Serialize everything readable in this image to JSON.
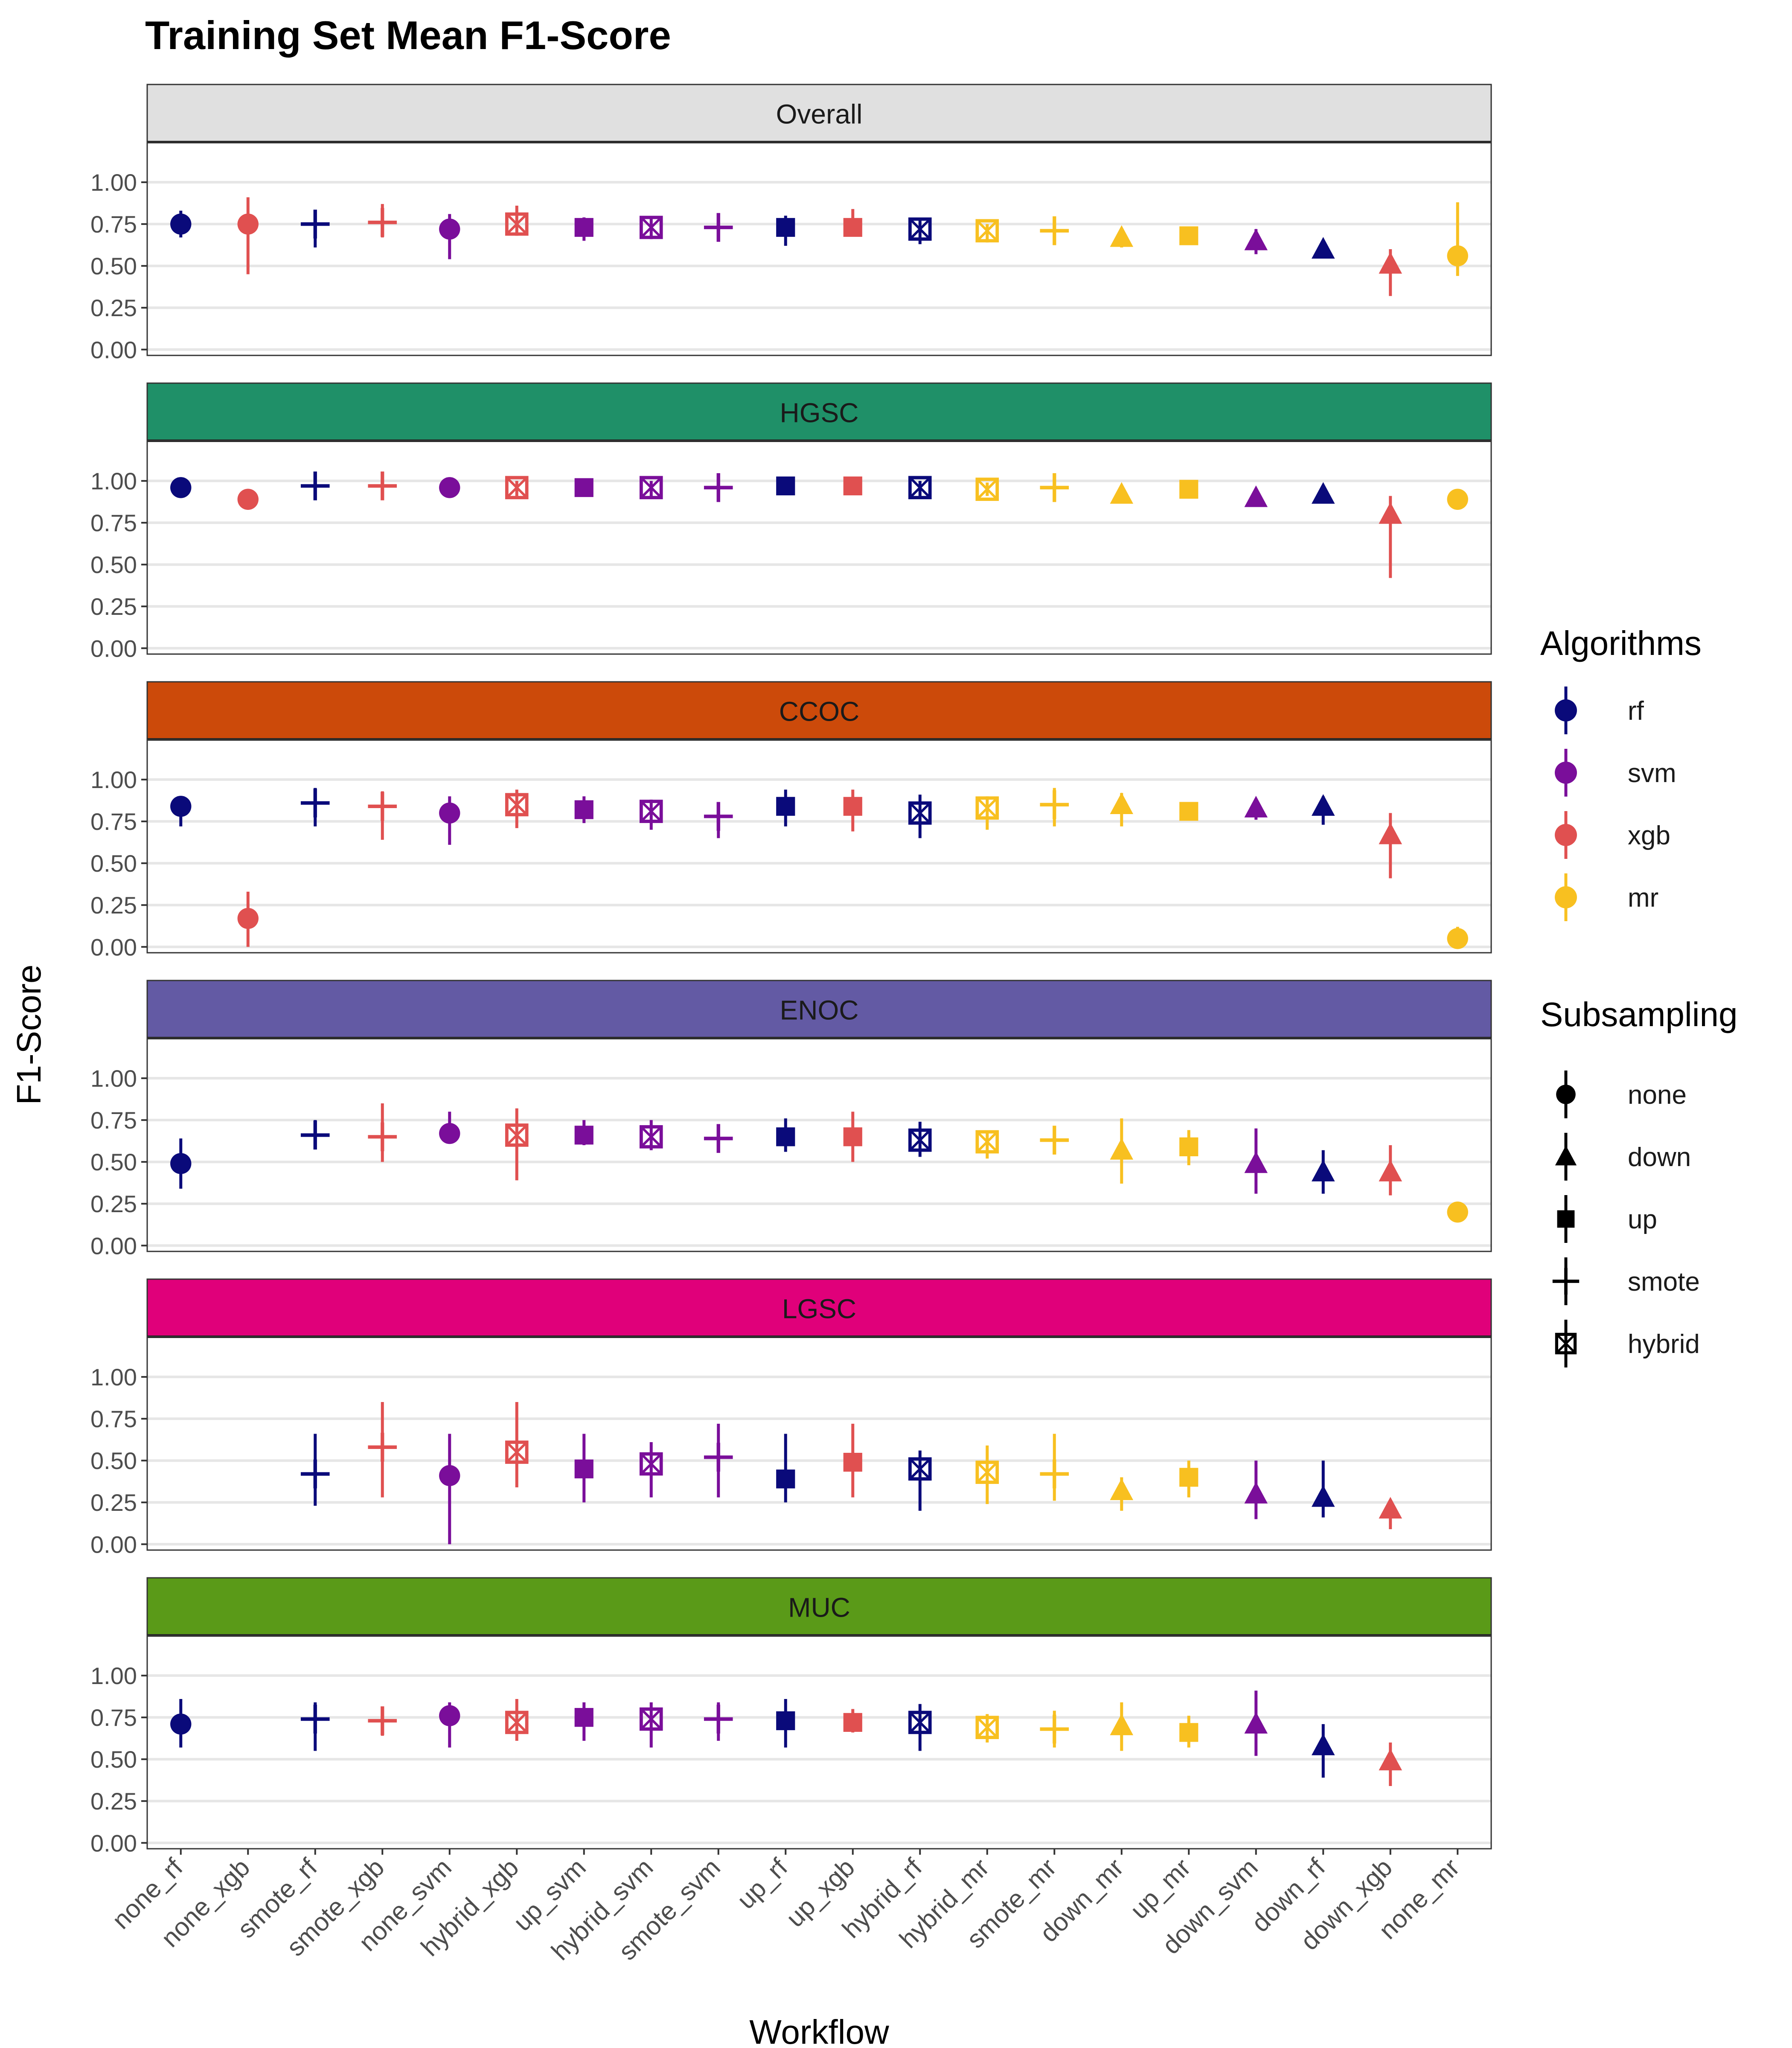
{
  "chart_data": {
    "type": "scatter",
    "title": "Training Set Mean F1-Score",
    "xlabel": "Workflow",
    "ylabel": "F1-Score",
    "ylim": [
      0,
      1
    ],
    "yticks": [
      "0.00",
      "0.25",
      "0.50",
      "0.75",
      "1.00"
    ],
    "grid": "horizontal",
    "legend_position": "right",
    "categories": [
      "none_rf",
      "none_xgb",
      "smote_rf",
      "smote_xgb",
      "none_svm",
      "hybrid_xgb",
      "up_svm",
      "hybrid_svm",
      "smote_svm",
      "up_rf",
      "up_xgb",
      "hybrid_rf",
      "hybrid_mr",
      "smote_mr",
      "down_mr",
      "up_mr",
      "down_svm",
      "down_rf",
      "down_xgb",
      "none_mr"
    ],
    "algorithms": {
      "title": "Algorithms",
      "items": [
        {
          "name": "rf",
          "color": "#0a0a7a"
        },
        {
          "name": "svm",
          "color": "#7a0e9a"
        },
        {
          "name": "xgb",
          "color": "#e05050"
        },
        {
          "name": "mr",
          "color": "#f8c020"
        }
      ]
    },
    "subsampling": {
      "title": "Subsampling",
      "items": [
        "none",
        "down",
        "up",
        "smote",
        "hybrid"
      ]
    },
    "panels": [
      {
        "name": "Overall",
        "strip_color": "#e0e0e0",
        "mean": [
          0.75,
          0.75,
          0.75,
          0.76,
          0.72,
          0.75,
          0.73,
          0.73,
          0.73,
          0.73,
          0.73,
          0.72,
          0.71,
          0.71,
          0.67,
          0.68,
          0.65,
          0.6,
          0.51,
          0.56
        ],
        "low": [
          0.67,
          0.45,
          0.61,
          0.67,
          0.54,
          0.68,
          0.65,
          0.66,
          0.65,
          0.62,
          0.68,
          0.63,
          0.64,
          0.63,
          0.61,
          0.65,
          0.57,
          0.57,
          0.32,
          0.44
        ],
        "high": [
          0.83,
          0.91,
          0.82,
          0.87,
          0.81,
          0.86,
          0.79,
          0.79,
          0.8,
          0.8,
          0.84,
          0.78,
          0.75,
          0.78,
          0.71,
          0.72,
          0.72,
          0.64,
          0.6,
          0.88
        ]
      },
      {
        "name": "HGSC",
        "strip_color": "#1f9068",
        "mean": [
          0.96,
          0.89,
          0.97,
          0.97,
          0.96,
          0.96,
          0.96,
          0.96,
          0.96,
          0.97,
          0.97,
          0.96,
          0.95,
          0.96,
          0.92,
          0.95,
          0.9,
          0.92,
          0.8,
          0.89
        ],
        "low": [
          0.94,
          0.87,
          0.9,
          0.9,
          0.93,
          0.91,
          0.92,
          0.9,
          0.9,
          0.94,
          0.93,
          0.91,
          0.91,
          0.89,
          0.88,
          0.91,
          0.86,
          0.89,
          0.42,
          0.87
        ],
        "high": [
          0.98,
          0.92,
          1.0,
          1.0,
          0.99,
          1.0,
          0.99,
          1.0,
          1.0,
          0.99,
          1.0,
          1.0,
          0.99,
          1.0,
          0.95,
          0.98,
          0.94,
          0.95,
          0.91,
          0.92
        ]
      },
      {
        "name": "CCOC",
        "strip_color": "#cc4a0a",
        "mean": [
          0.84,
          0.17,
          0.86,
          0.84,
          0.8,
          0.85,
          0.82,
          0.81,
          0.78,
          0.84,
          0.84,
          0.8,
          0.83,
          0.85,
          0.85,
          0.81,
          0.83,
          0.84,
          0.67,
          0.05
        ],
        "low": [
          0.72,
          0.0,
          0.72,
          0.64,
          0.61,
          0.71,
          0.74,
          0.7,
          0.65,
          0.72,
          0.69,
          0.65,
          0.7,
          0.72,
          0.72,
          0.77,
          0.76,
          0.73,
          0.41,
          0.01
        ],
        "high": [
          0.9,
          0.33,
          0.95,
          0.93,
          0.9,
          0.94,
          0.9,
          0.88,
          0.85,
          0.94,
          0.94,
          0.91,
          0.9,
          0.95,
          0.92,
          0.86,
          0.88,
          0.9,
          0.8,
          0.12
        ]
      },
      {
        "name": "ENOC",
        "strip_color": "#635aa4",
        "mean": [
          0.49,
          null,
          0.66,
          0.65,
          0.67,
          0.66,
          0.66,
          0.65,
          0.64,
          0.65,
          0.65,
          0.63,
          0.62,
          0.63,
          0.57,
          0.59,
          0.49,
          0.44,
          0.44,
          0.2
        ],
        "low": [
          0.34,
          null,
          0.58,
          0.5,
          0.61,
          0.39,
          0.6,
          0.57,
          0.56,
          0.56,
          0.5,
          0.53,
          0.52,
          0.56,
          0.37,
          0.48,
          0.31,
          0.31,
          0.3,
          0.18
        ],
        "high": [
          0.64,
          null,
          0.75,
          0.85,
          0.8,
          0.82,
          0.75,
          0.75,
          0.7,
          0.76,
          0.8,
          0.74,
          0.68,
          0.71,
          0.76,
          0.69,
          0.7,
          0.57,
          0.6,
          0.22
        ]
      },
      {
        "name": "LGSC",
        "strip_color": "#e0007a",
        "mean": [
          null,
          null,
          0.42,
          0.58,
          0.41,
          0.55,
          0.45,
          0.48,
          0.52,
          0.39,
          0.49,
          0.45,
          0.43,
          0.42,
          0.32,
          0.4,
          0.3,
          0.28,
          0.21,
          null
        ],
        "low": [
          null,
          null,
          0.23,
          0.28,
          0.0,
          0.34,
          0.25,
          0.28,
          0.28,
          0.25,
          0.28,
          0.2,
          0.24,
          0.26,
          0.2,
          0.28,
          0.15,
          0.16,
          0.09,
          null
        ],
        "high": [
          null,
          null,
          0.66,
          0.85,
          0.66,
          0.85,
          0.66,
          0.61,
          0.72,
          0.66,
          0.72,
          0.56,
          0.59,
          0.66,
          0.4,
          0.5,
          0.5,
          0.5,
          0.25,
          null
        ]
      },
      {
        "name": "MUC",
        "strip_color": "#5a9a18",
        "mean": [
          0.71,
          null,
          0.74,
          0.73,
          0.76,
          0.72,
          0.75,
          0.74,
          0.74,
          0.73,
          0.72,
          0.72,
          0.69,
          0.68,
          0.7,
          0.66,
          0.71,
          0.58,
          0.49,
          null
        ],
        "low": [
          0.57,
          null,
          0.55,
          0.64,
          0.57,
          0.61,
          0.61,
          0.57,
          0.61,
          0.57,
          0.66,
          0.55,
          0.6,
          0.57,
          0.55,
          0.57,
          0.52,
          0.39,
          0.34,
          null
        ],
        "high": [
          0.86,
          null,
          0.84,
          0.8,
          0.84,
          0.86,
          0.84,
          0.84,
          0.84,
          0.86,
          0.8,
          0.83,
          0.77,
          0.79,
          0.84,
          0.76,
          0.91,
          0.71,
          0.6,
          null
        ]
      }
    ]
  }
}
